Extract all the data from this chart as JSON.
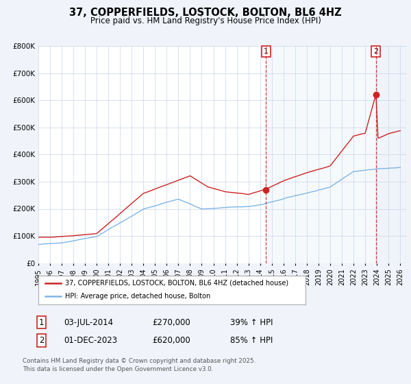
{
  "title": "37, COPPERFIELDS, LOSTOCK, BOLTON, BL6 4HZ",
  "subtitle": "Price paid vs. HM Land Registry's House Price Index (HPI)",
  "ylim": [
    0,
    800000
  ],
  "xlim_start": 1995,
  "xlim_end": 2026.5,
  "yticks": [
    0,
    100000,
    200000,
    300000,
    400000,
    500000,
    600000,
    700000,
    800000
  ],
  "ytick_labels": [
    "£0",
    "£100K",
    "£200K",
    "£300K",
    "£400K",
    "£500K",
    "£600K",
    "£700K",
    "£800K"
  ],
  "xtick_years": [
    1995,
    1996,
    1997,
    1998,
    1999,
    2000,
    2001,
    2002,
    2003,
    2004,
    2005,
    2006,
    2007,
    2008,
    2009,
    2010,
    2011,
    2012,
    2013,
    2014,
    2015,
    2016,
    2017,
    2018,
    2019,
    2020,
    2021,
    2022,
    2023,
    2024,
    2025,
    2026
  ],
  "hpi_color": "#7eb6e8",
  "price_color": "#cc2222",
  "annotation1_date": 2014.5,
  "annotation1_value": 270000,
  "annotation2_date": 2023.917,
  "annotation2_value": 620000,
  "sale1_date": "03-JUL-2014",
  "sale1_price": "£270,000",
  "sale1_hpi": "39% ↑ HPI",
  "sale2_date": "01-DEC-2023",
  "sale2_price": "£620,000",
  "sale2_hpi": "85% ↑ HPI",
  "legend1": "37, COPPERFIELDS, LOSTOCK, BOLTON, BL6 4HZ (detached house)",
  "legend2": "HPI: Average price, detached house, Bolton",
  "footnote": "Contains HM Land Registry data © Crown copyright and database right 2025.\nThis data is licensed under the Open Government Licence v3.0.",
  "bg_color": "#f0f4fa",
  "plot_bg": "#ffffff"
}
